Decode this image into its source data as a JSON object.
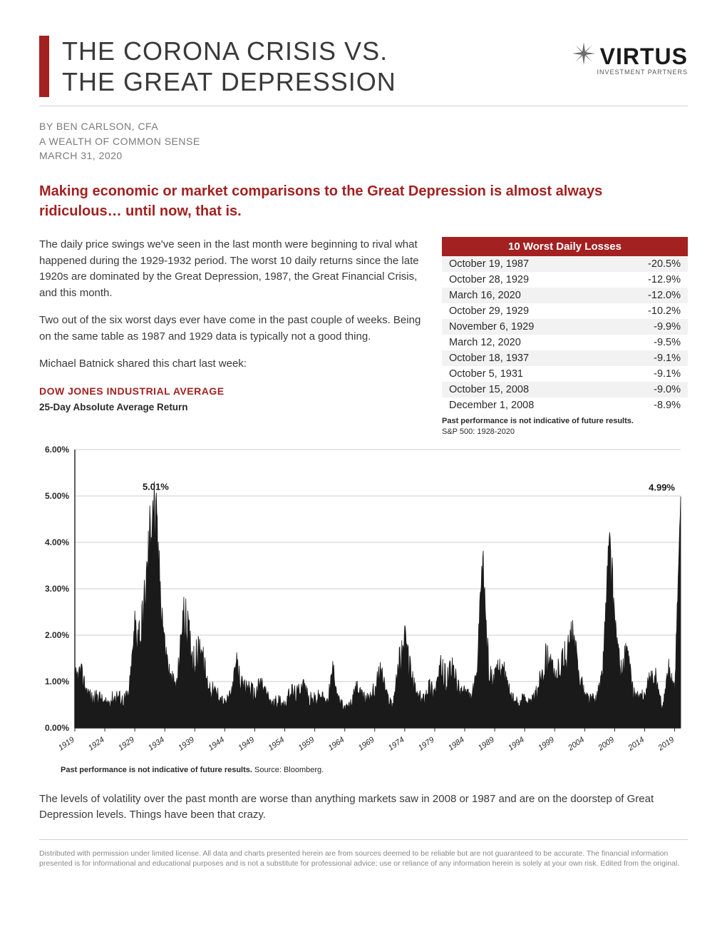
{
  "header": {
    "title_line1": "THE CORONA CRISIS VS.",
    "title_line2": "THE GREAT DEPRESSION",
    "logo_main": "VIRTUS",
    "logo_sub": "INVESTMENT PARTNERS"
  },
  "byline": {
    "author": "BY BEN CARLSON, CFA",
    "source": "A WEALTH OF COMMON SENSE",
    "date": "MARCH 31, 2020"
  },
  "lede": "Making economic or market comparisons to the Great Depression is almost always ridiculous… until now, that is.",
  "body": {
    "p1": "The daily price swings we've seen in the last month were beginning to rival what happened during the 1929-1932 period. The worst 10 daily returns since the late 1920s are dominated by the Great Depression, 1987, the Great Financial Crisis, and this month.",
    "p2": "Two out of the six worst days ever have come in the past couple of weeks. Being on the same table as 1987 and 1929 data is typically not a good thing.",
    "p3": "Michael Batnick shared this chart last week:"
  },
  "loss_table": {
    "title": "10 Worst Daily Losses",
    "rows": [
      {
        "date": "October 19, 1987",
        "pct": "-20.5%"
      },
      {
        "date": "October 28, 1929",
        "pct": "-12.9%"
      },
      {
        "date": "March 16, 2020",
        "pct": "-12.0%"
      },
      {
        "date": "October 29, 1929",
        "pct": "-10.2%"
      },
      {
        "date": "November 6, 1929",
        "pct": "-9.9%"
      },
      {
        "date": "March 12, 2020",
        "pct": "-9.5%"
      },
      {
        "date": "October 18, 1937",
        "pct": "-9.1%"
      },
      {
        "date": "October 5, 1931",
        "pct": "-9.1%"
      },
      {
        "date": "October 15, 2008",
        "pct": "-9.0%"
      },
      {
        "date": "December 1, 2008",
        "pct": "-8.9%"
      }
    ],
    "note_bold": "Past performance is not indicative of future results.",
    "note_rest": "S&P 500: 1928-2020"
  },
  "chart": {
    "heading": "DOW JONES INDUSTRIAL AVERAGE",
    "sub": "25-Day Absolute Average Return",
    "y_labels": [
      "0.00%",
      "1.00%",
      "2.00%",
      "3.00%",
      "4.00%",
      "5.00%",
      "6.00%"
    ],
    "ymax": 6.0,
    "x_labels": [
      "1919",
      "1924",
      "1929",
      "1934",
      "1939",
      "1944",
      "1949",
      "1954",
      "1959",
      "1964",
      "1969",
      "1974",
      "1979",
      "1984",
      "1989",
      "1994",
      "1999",
      "2004",
      "2009",
      "2014",
      "2019"
    ],
    "annotations": [
      {
        "label": "5.01%",
        "x_year": 1932,
        "y": 5.01
      },
      {
        "label": "4.99%",
        "x_year": 2020,
        "y": 4.99
      }
    ],
    "line_color": "#1a1a1a",
    "grid_color": "#cccccc",
    "note_bold": "Past performance is not indicative of future results.",
    "note_rest": " Source: Bloomberg."
  },
  "closing": "The levels of volatility over the past month are worse than anything markets saw in 2008 or 1987 and are on the doorstep of Great Depression levels. Things have been that crazy.",
  "disclaimer": "Distributed with permission under limited license. All data and charts presented herein are from sources deemed to be reliable but are not guaranteed to be accurate. The financial information presented is for informational and educational purposes and is not a substitute for professional advice; use or reliance of any information herein is solely at your own risk. Edited from the original."
}
